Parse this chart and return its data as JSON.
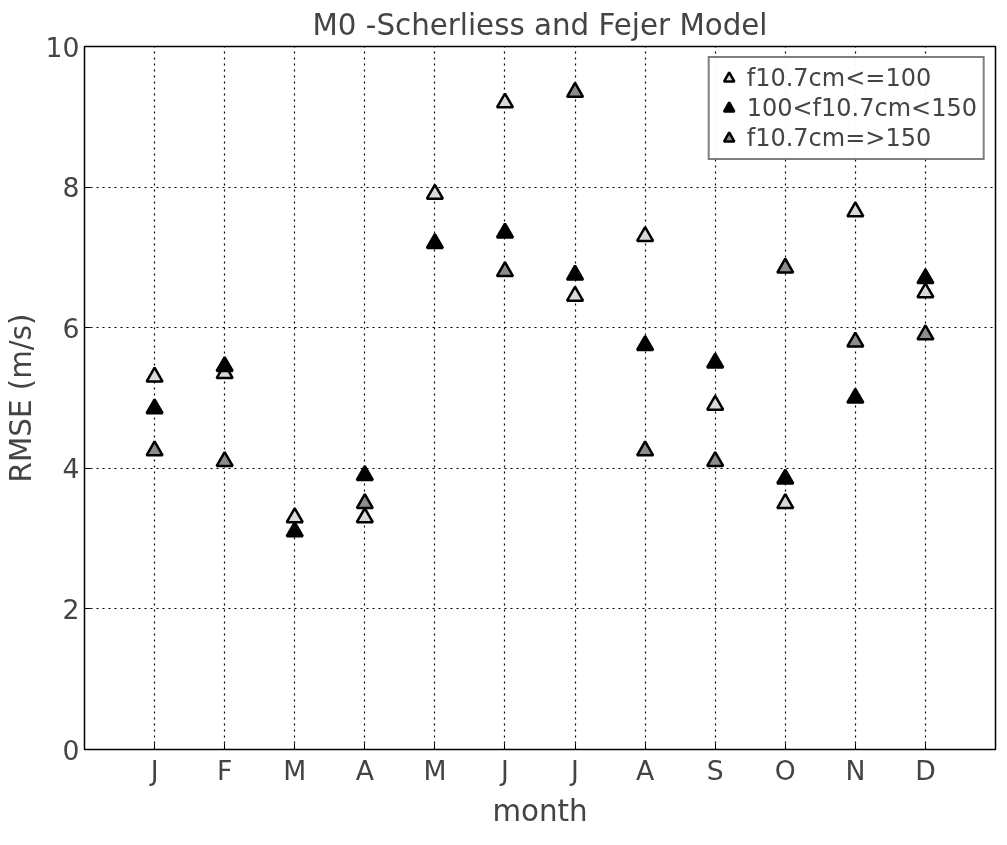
{
  "chart_data": {
    "type": "scatter",
    "title": "M0 -Scherliess and Fejer Model",
    "xlabel": "month",
    "ylabel": "RMSE (m/s)",
    "categories": [
      "J",
      "F",
      "M",
      "A",
      "M",
      "J",
      "J",
      "A",
      "S",
      "O",
      "N",
      "D"
    ],
    "series": [
      {
        "name": "f10.7cm<=100",
        "color": "#d9d9d9",
        "values": [
          5.3,
          5.35,
          3.3,
          3.3,
          7.9,
          9.2,
          6.45,
          7.3,
          4.9,
          3.5,
          7.65,
          6.5
        ]
      },
      {
        "name": "100<f10.7cm<150",
        "color": "#000000",
        "values": [
          4.85,
          5.45,
          3.1,
          3.9,
          7.2,
          7.35,
          6.75,
          5.75,
          5.5,
          3.85,
          5.0,
          6.7
        ]
      },
      {
        "name": "f10.7cm=>150",
        "color": "#8c8c8c",
        "values": [
          4.25,
          4.1,
          null,
          3.5,
          null,
          6.8,
          9.35,
          4.25,
          4.1,
          6.85,
          5.8,
          5.9
        ]
      }
    ],
    "ylim": [
      0,
      10
    ],
    "yticks": [
      0,
      2,
      4,
      6,
      8,
      10
    ],
    "grid": true,
    "legend": "top right",
    "marker": "triangle"
  }
}
